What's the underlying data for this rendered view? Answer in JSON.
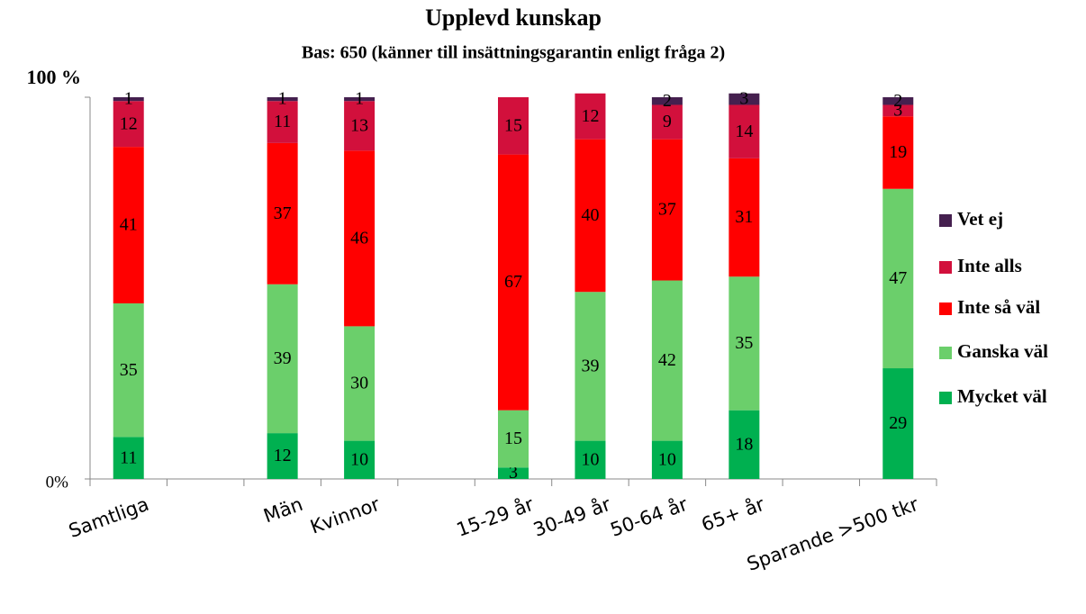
{
  "chart_data": {
    "type": "stacked_bar",
    "title": "Upplevd kunskap",
    "subtitle": "Bas: 650 (känner till insättningsgarantin enligt fråga 2)",
    "categories": [
      "Samtliga",
      null,
      "Män",
      "Kvinnor",
      null,
      "15-29 år",
      "30-49 år",
      "50-64 år",
      "65+ år",
      null,
      "Sparande >500 tkr"
    ],
    "series": [
      {
        "name": "Mycket väl",
        "color": "#00b050",
        "values": [
          11,
          null,
          12,
          10,
          null,
          3,
          10,
          10,
          18,
          null,
          29
        ]
      },
      {
        "name": "Ganska väl",
        "color": "#6bcf6b",
        "values": [
          35,
          null,
          39,
          30,
          null,
          15,
          39,
          42,
          35,
          null,
          47
        ]
      },
      {
        "name": "Inte så väl",
        "color": "#ff0000",
        "values": [
          41,
          null,
          37,
          46,
          null,
          67,
          40,
          37,
          31,
          null,
          19
        ]
      },
      {
        "name": "Inte alls",
        "color": "#d2103c",
        "values": [
          12,
          null,
          11,
          13,
          null,
          15,
          12,
          9,
          14,
          null,
          3
        ]
      },
      {
        "name": "Vet ej",
        "color": "#45204f",
        "values": [
          1,
          null,
          1,
          1,
          null,
          null,
          null,
          2,
          3,
          null,
          2
        ]
      }
    ],
    "ylim": [
      0,
      100
    ],
    "yticks": [
      {
        "value": 0,
        "label": "0%"
      },
      {
        "value": 100,
        "label": "100 %"
      }
    ],
    "grid": false,
    "legend": "right"
  }
}
